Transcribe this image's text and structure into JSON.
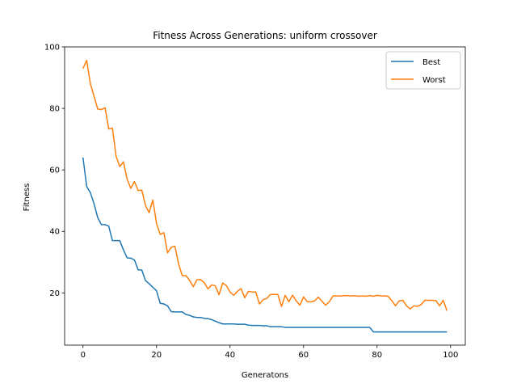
{
  "chart_data": {
    "type": "line",
    "title": "Fitness Across Generations: uniform crossover",
    "xlabel": "Generatons",
    "ylabel": "Fitness",
    "xlim": [
      -5,
      104
    ],
    "ylim": [
      3,
      100
    ],
    "xticks": [
      0,
      20,
      40,
      60,
      80,
      100
    ],
    "yticks": [
      20,
      40,
      60,
      80,
      100
    ],
    "grid": false,
    "legend": "top-right",
    "x": [
      0,
      1,
      2,
      3,
      4,
      5,
      6,
      7,
      8,
      9,
      10,
      11,
      12,
      13,
      14,
      15,
      16,
      17,
      18,
      19,
      20,
      21,
      22,
      23,
      24,
      25,
      26,
      27,
      28,
      29,
      30,
      31,
      32,
      33,
      34,
      35,
      36,
      37,
      38,
      39,
      40,
      41,
      42,
      43,
      44,
      45,
      46,
      47,
      48,
      49,
      50,
      51,
      52,
      53,
      54,
      55,
      56,
      57,
      58,
      59,
      60,
      61,
      62,
      63,
      64,
      65,
      66,
      67,
      68,
      69,
      70,
      71,
      72,
      73,
      74,
      75,
      76,
      77,
      78,
      79,
      80,
      81,
      82,
      83,
      84,
      85,
      86,
      87,
      88,
      89,
      90,
      91,
      92,
      93,
      94,
      95,
      96,
      97,
      98,
      99
    ],
    "series": [
      {
        "name": "Best",
        "color": "#1f77b4",
        "values": [
          64,
          54.6,
          52.6,
          49,
          44.5,
          42.2,
          42.2,
          41.7,
          37,
          37,
          37,
          34,
          31.4,
          31.3,
          30.7,
          27.5,
          27.4,
          24,
          23,
          21.8,
          20.7,
          16.6,
          16.4,
          15.8,
          13.9,
          13.8,
          13.8,
          13.8,
          13,
          12.7,
          12.2,
          12,
          12,
          11.7,
          11.6,
          11.3,
          10.8,
          10.3,
          9.9,
          9.9,
          9.9,
          9.9,
          9.8,
          9.8,
          9.8,
          9.5,
          9.4,
          9.4,
          9.4,
          9.3,
          9.3,
          9.0,
          9.0,
          9.0,
          9.0,
          8.8,
          8.8,
          8.8,
          8.8,
          8.8,
          8.8,
          8.8,
          8.8,
          8.8,
          8.8,
          8.8,
          8.8,
          8.8,
          8.8,
          8.8,
          8.8,
          8.8,
          8.8,
          8.8,
          8.8,
          8.8,
          8.8,
          8.8,
          8.8,
          7.3,
          7.3,
          7.3,
          7.3,
          7.3,
          7.3,
          7.3,
          7.3,
          7.3,
          7.3,
          7.3,
          7.3,
          7.3,
          7.3,
          7.3,
          7.3,
          7.3,
          7.3,
          7.3,
          7.3,
          7.3
        ]
      },
      {
        "name": "Worst",
        "color": "#ff7f0e",
        "values": [
          93,
          95.6,
          88,
          84,
          79.8,
          79.6,
          80.2,
          73.3,
          73.6,
          64.4,
          61.1,
          62.6,
          57,
          54,
          56.2,
          53.3,
          53.4,
          48.4,
          46.1,
          50.2,
          42.6,
          39,
          39.6,
          33,
          34.8,
          35.2,
          29.4,
          25.6,
          25.6,
          24.1,
          22,
          24.3,
          24.3,
          23.3,
          21.3,
          22.6,
          22.3,
          19.4,
          23.2,
          22.4,
          20.3,
          19.2,
          20.5,
          21.4,
          18.4,
          20.5,
          20.3,
          20.3,
          16.4,
          17.8,
          18.2,
          19.5,
          19.5,
          19.5,
          15.6,
          19.2,
          17.1,
          19.3,
          17.4,
          16,
          18.7,
          17.1,
          17.1,
          17.4,
          18.6,
          17.3,
          16,
          17.1,
          19,
          19,
          19,
          19.1,
          19.1,
          19,
          19.1,
          18.9,
          19,
          18.9,
          19.1,
          18.9,
          19.2,
          19,
          19,
          18.9,
          17.5,
          15.8,
          17.4,
          17.6,
          15.8,
          14.8,
          15.8,
          15.6,
          16.2,
          17.6,
          17.6,
          17.6,
          17.5,
          15.8,
          17.6,
          14.2
        ]
      }
    ]
  }
}
